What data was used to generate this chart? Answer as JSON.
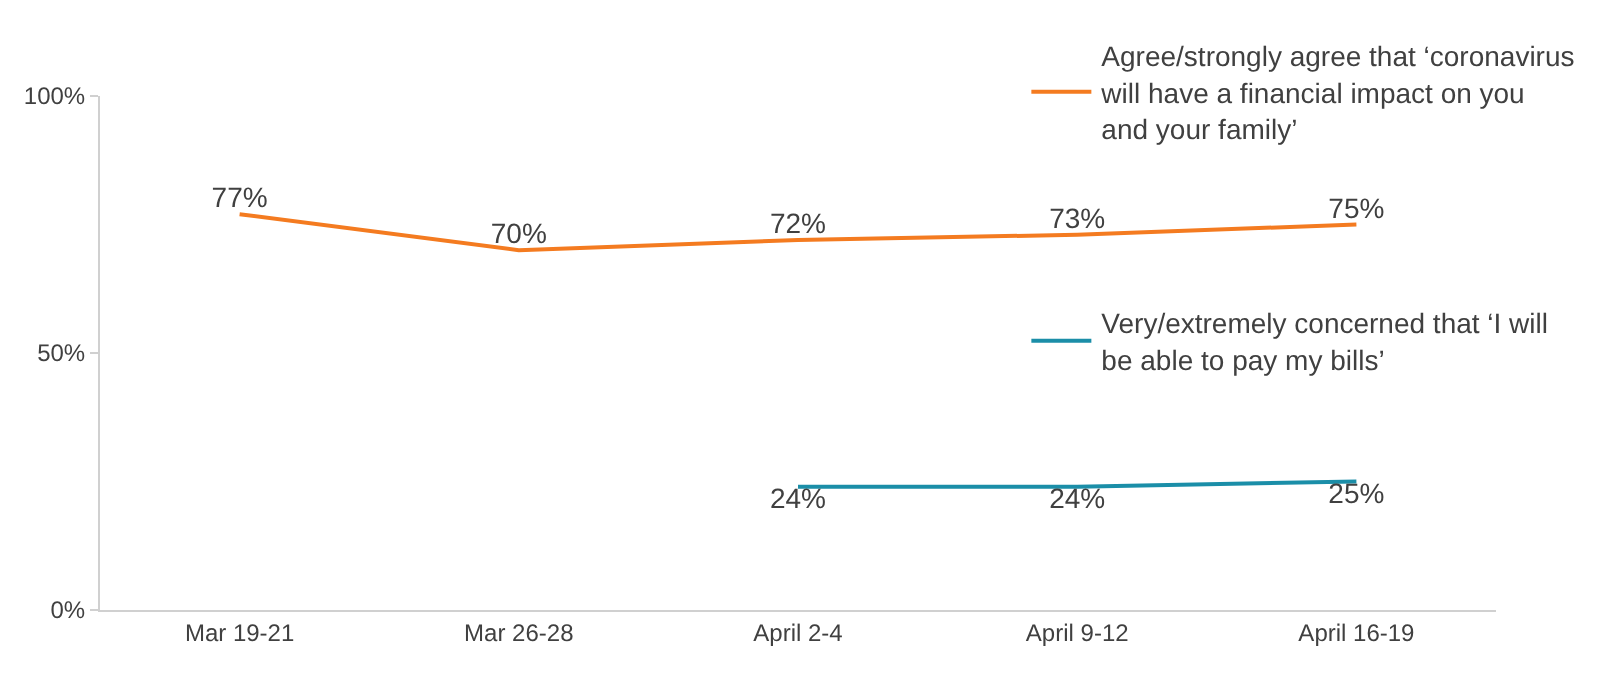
{
  "chart_data": {
    "type": "line",
    "categories": [
      "Mar 19-21",
      "Mar 26-28",
      "April 2-4",
      "April 9-12",
      "April 16-19"
    ],
    "series": [
      {
        "name": "Agree/strongly agree that ‘coronavirus will have a financial impact on you and your family’",
        "color": "#f47b20",
        "values": [
          77,
          70,
          72,
          73,
          75
        ],
        "value_labels": [
          "77%",
          "70%",
          "72%",
          "73%",
          "75%"
        ]
      },
      {
        "name": "Very/extremely concerned that ‘I will be able to pay my bills’",
        "color": "#1b8ea8",
        "values": [
          null,
          null,
          24,
          24,
          25
        ],
        "value_labels": [
          null,
          null,
          "24%",
          "24%",
          "25%"
        ]
      }
    ],
    "ylim": [
      0,
      100
    ],
    "yticks": [
      {
        "value": 0,
        "label": "0%"
      },
      {
        "value": 50,
        "label": "50%"
      },
      {
        "value": 100,
        "label": "100%"
      }
    ],
    "grid": false,
    "legend": "right",
    "marker": "none",
    "line_style": "solid"
  }
}
